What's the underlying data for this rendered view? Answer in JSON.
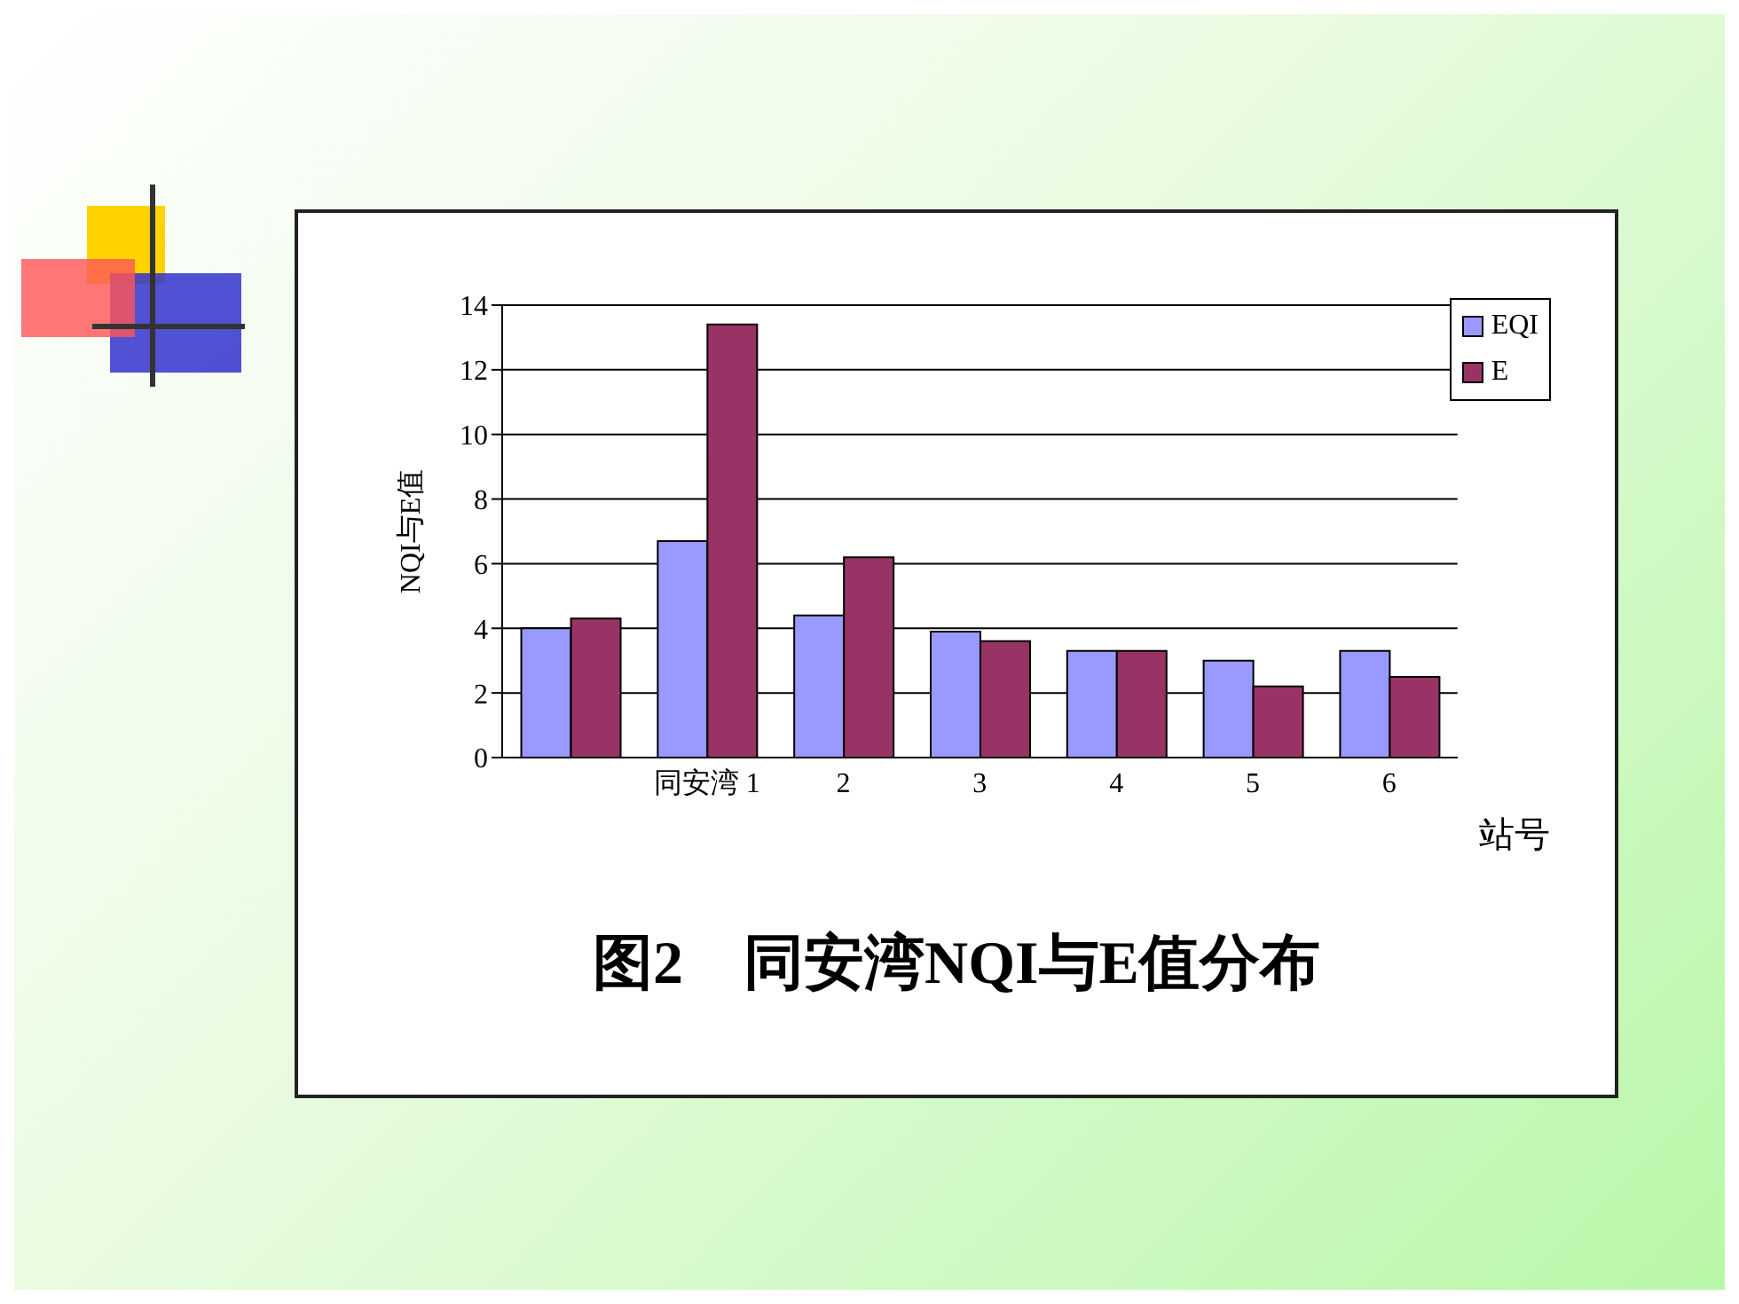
{
  "chart_data": {
    "type": "bar",
    "title": "图2　同安湾NQI与E值分布",
    "xlabel": "站号",
    "ylabel": "NQI与E值",
    "categories": [
      null,
      "同安湾 1",
      "2",
      "3",
      "4",
      "5",
      "6"
    ],
    "series": [
      {
        "name": "EQI",
        "color": "#9999ff",
        "values": [
          4.0,
          6.7,
          4.4,
          3.9,
          3.3,
          3.0,
          3.3
        ]
      },
      {
        "name": "E",
        "color": "#993366",
        "values": [
          4.3,
          13.4,
          6.2,
          3.6,
          3.3,
          2.2,
          2.5
        ]
      }
    ],
    "ylim": [
      0,
      14
    ],
    "yticks": [
      0,
      2,
      4,
      6,
      8,
      10,
      12,
      14
    ],
    "grid": "y",
    "legend": "top right"
  }
}
